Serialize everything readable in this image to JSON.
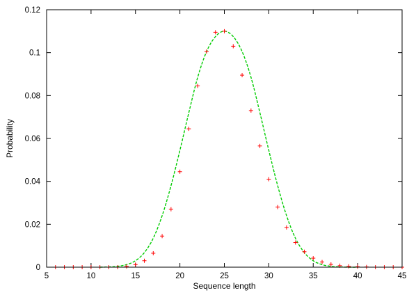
{
  "chart_data": {
    "type": "scatter",
    "title": "",
    "xlabel": "Sequence length",
    "ylabel": "Probability",
    "xlim": [
      5,
      45
    ],
    "ylim": [
      0,
      0.12
    ],
    "xticks": [
      "5",
      "10",
      "15",
      "20",
      "25",
      "30",
      "35",
      "40",
      "45"
    ],
    "yticks": [
      "0",
      "0.02",
      "0.04",
      "0.06",
      "0.08",
      "0.1",
      "0.12"
    ],
    "grid": false,
    "legend": "none",
    "series": [
      {
        "kind": "points",
        "marker": "plus",
        "color": "#ff0000",
        "x": [
          6,
          7,
          8,
          9,
          10,
          11,
          12,
          13,
          14,
          15,
          16,
          17,
          18,
          19,
          20,
          21,
          22,
          23,
          24,
          25,
          26,
          27,
          28,
          29,
          30,
          31,
          32,
          33,
          34,
          35,
          36,
          37,
          38,
          39,
          40,
          41,
          42,
          43,
          44,
          45
        ],
        "y": [
          0,
          0,
          0,
          0,
          0,
          0,
          0,
          0,
          0.0003,
          0.0012,
          0.003,
          0.0065,
          0.0145,
          0.027,
          0.0445,
          0.0645,
          0.0845,
          0.1005,
          0.1095,
          0.11,
          0.103,
          0.0895,
          0.073,
          0.0565,
          0.041,
          0.028,
          0.0185,
          0.0115,
          0.0072,
          0.0042,
          0.0024,
          0.0013,
          0.0007,
          0.0004,
          0.0002,
          0.0001,
          0,
          0,
          0,
          0
        ]
      },
      {
        "kind": "curve",
        "line_style": "dashed",
        "color": "#00cc00",
        "x": [
          11,
          12,
          13,
          14,
          15,
          16,
          17,
          18,
          19,
          20,
          21,
          22,
          23,
          24,
          25,
          26,
          27,
          28,
          29,
          30,
          31,
          32,
          33,
          34,
          35,
          36,
          37,
          38,
          39,
          40
        ],
        "y": [
          0,
          0.0001,
          0.0004,
          0.0012,
          0.003,
          0.0068,
          0.0135,
          0.024,
          0.038,
          0.0545,
          0.072,
          0.0885,
          0.1005,
          0.1075,
          0.11,
          0.1075,
          0.1005,
          0.0885,
          0.072,
          0.0545,
          0.038,
          0.024,
          0.0135,
          0.0068,
          0.003,
          0.0012,
          0.0004,
          0.0001,
          0,
          0
        ]
      }
    ]
  }
}
